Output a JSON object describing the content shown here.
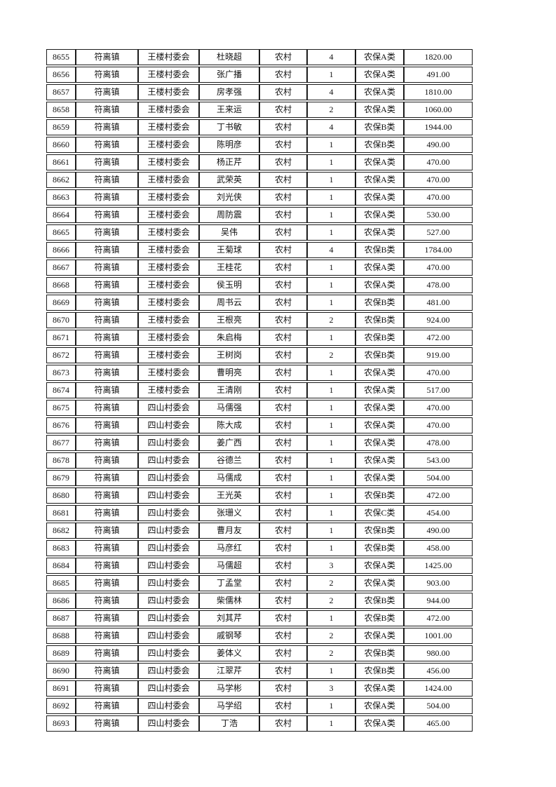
{
  "document": {
    "background_color": "#ffffff",
    "text_color": "#111111",
    "border_color": "#1c1c1c"
  },
  "table": {
    "rows": [
      [
        "8655",
        "符离镇",
        "王楼村委会",
        "杜晓超",
        "农村",
        "4",
        "农保A类",
        "1820.00"
      ],
      [
        "8656",
        "符离镇",
        "王楼村委会",
        "张广播",
        "农村",
        "1",
        "农保A类",
        "491.00"
      ],
      [
        "8657",
        "符离镇",
        "王楼村委会",
        "房孝强",
        "农村",
        "4",
        "农保A类",
        "1810.00"
      ],
      [
        "8658",
        "符离镇",
        "王楼村委会",
        "王来运",
        "农村",
        "2",
        "农保A类",
        "1060.00"
      ],
      [
        "8659",
        "符离镇",
        "王楼村委会",
        "丁书敏",
        "农村",
        "4",
        "农保B类",
        "1944.00"
      ],
      [
        "8660",
        "符离镇",
        "王楼村委会",
        "陈明彦",
        "农村",
        "1",
        "农保B类",
        "490.00"
      ],
      [
        "8661",
        "符离镇",
        "王楼村委会",
        "杨正芹",
        "农村",
        "1",
        "农保A类",
        "470.00"
      ],
      [
        "8662",
        "符离镇",
        "王楼村委会",
        "武荣英",
        "农村",
        "1",
        "农保A类",
        "470.00"
      ],
      [
        "8663",
        "符离镇",
        "王楼村委会",
        "刘光侠",
        "农村",
        "1",
        "农保A类",
        "470.00"
      ],
      [
        "8664",
        "符离镇",
        "王楼村委会",
        "周防震",
        "农村",
        "1",
        "农保A类",
        "530.00"
      ],
      [
        "8665",
        "符离镇",
        "王楼村委会",
        "吴伟",
        "农村",
        "1",
        "农保A类",
        "527.00"
      ],
      [
        "8666",
        "符离镇",
        "王楼村委会",
        "王菊球",
        "农村",
        "4",
        "农保B类",
        "1784.00"
      ],
      [
        "8667",
        "符离镇",
        "王楼村委会",
        "王桂花",
        "农村",
        "1",
        "农保A类",
        "470.00"
      ],
      [
        "8668",
        "符离镇",
        "王楼村委会",
        "侯玉明",
        "农村",
        "1",
        "农保A类",
        "478.00"
      ],
      [
        "8669",
        "符离镇",
        "王楼村委会",
        "周书云",
        "农村",
        "1",
        "农保B类",
        "481.00"
      ],
      [
        "8670",
        "符离镇",
        "王楼村委会",
        "王根亮",
        "农村",
        "2",
        "农保B类",
        "924.00"
      ],
      [
        "8671",
        "符离镇",
        "王楼村委会",
        "朱启梅",
        "农村",
        "1",
        "农保B类",
        "472.00"
      ],
      [
        "8672",
        "符离镇",
        "王楼村委会",
        "王树岗",
        "农村",
        "2",
        "农保B类",
        "919.00"
      ],
      [
        "8673",
        "符离镇",
        "王楼村委会",
        "曹明亮",
        "农村",
        "1",
        "农保A类",
        "470.00"
      ],
      [
        "8674",
        "符离镇",
        "王楼村委会",
        "王清刚",
        "农村",
        "1",
        "农保A类",
        "517.00"
      ],
      [
        "8675",
        "符离镇",
        "四山村委会",
        "马儒强",
        "农村",
        "1",
        "农保A类",
        "470.00"
      ],
      [
        "8676",
        "符离镇",
        "四山村委会",
        "陈大成",
        "农村",
        "1",
        "农保A类",
        "470.00"
      ],
      [
        "8677",
        "符离镇",
        "四山村委会",
        "姜广西",
        "农村",
        "1",
        "农保A类",
        "478.00"
      ],
      [
        "8678",
        "符离镇",
        "四山村委会",
        "谷德兰",
        "农村",
        "1",
        "农保A类",
        "543.00"
      ],
      [
        "8679",
        "符离镇",
        "四山村委会",
        "马儒成",
        "农村",
        "1",
        "农保A类",
        "504.00"
      ],
      [
        "8680",
        "符离镇",
        "四山村委会",
        "王光英",
        "农村",
        "1",
        "农保B类",
        "472.00"
      ],
      [
        "8681",
        "符离镇",
        "四山村委会",
        "张珊义",
        "农村",
        "1",
        "农保C类",
        "454.00"
      ],
      [
        "8682",
        "符离镇",
        "四山村委会",
        "曹月友",
        "农村",
        "1",
        "农保B类",
        "490.00"
      ],
      [
        "8683",
        "符离镇",
        "四山村委会",
        "马彦红",
        "农村",
        "1",
        "农保B类",
        "458.00"
      ],
      [
        "8684",
        "符离镇",
        "四山村委会",
        "马儒超",
        "农村",
        "3",
        "农保A类",
        "1425.00"
      ],
      [
        "8685",
        "符离镇",
        "四山村委会",
        "丁孟堂",
        "农村",
        "2",
        "农保A类",
        "903.00"
      ],
      [
        "8686",
        "符离镇",
        "四山村委会",
        "柴儒林",
        "农村",
        "2",
        "农保B类",
        "944.00"
      ],
      [
        "8687",
        "符离镇",
        "四山村委会",
        "刘其芹",
        "农村",
        "1",
        "农保B类",
        "472.00"
      ],
      [
        "8688",
        "符离镇",
        "四山村委会",
        "戚钢琴",
        "农村",
        "2",
        "农保A类",
        "1001.00"
      ],
      [
        "8689",
        "符离镇",
        "四山村委会",
        "姜体义",
        "农村",
        "2",
        "农保B类",
        "980.00"
      ],
      [
        "8690",
        "符离镇",
        "四山村委会",
        "江翠芹",
        "农村",
        "1",
        "农保B类",
        "456.00"
      ],
      [
        "8691",
        "符离镇",
        "四山村委会",
        "马学彬",
        "农村",
        "3",
        "农保A类",
        "1424.00"
      ],
      [
        "8692",
        "符离镇",
        "四山村委会",
        "马学绍",
        "农村",
        "1",
        "农保A类",
        "504.00"
      ],
      [
        "8693",
        "符离镇",
        "四山村委会",
        "丁浩",
        "农村",
        "1",
        "农保A类",
        "465.00"
      ]
    ]
  }
}
